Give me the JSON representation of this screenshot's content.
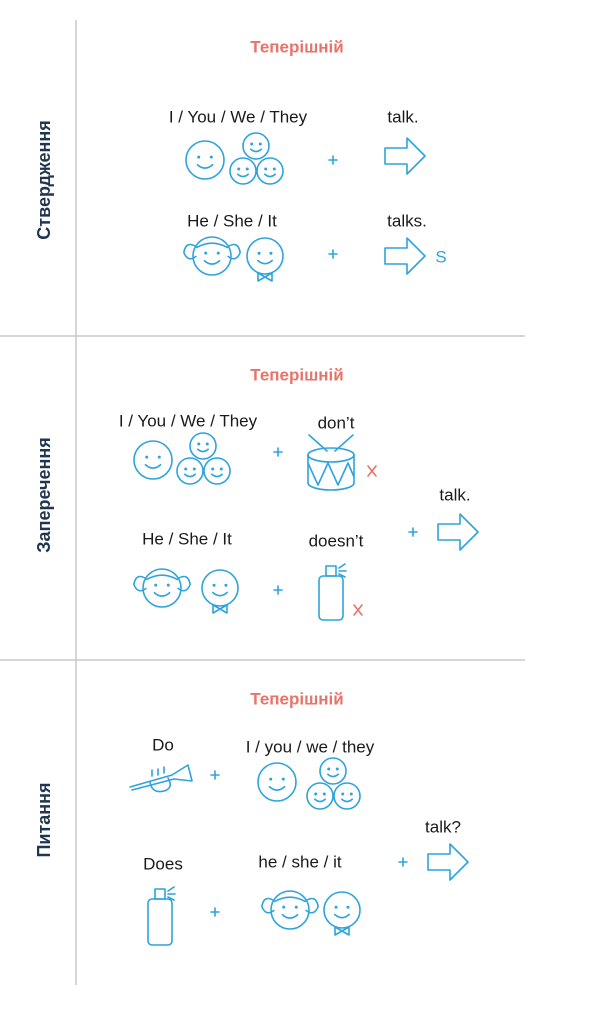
{
  "sections": [
    {
      "label": "Ствердження",
      "title": "Теперішній",
      "rows": [
        {
          "subject": "I / You / We / They",
          "verb": "talk."
        },
        {
          "subject": "He / She / It",
          "verb": "talks.",
          "suffix": "S"
        }
      ]
    },
    {
      "label": "Заперечення",
      "title": "Теперішній",
      "rows": [
        {
          "subject": "I / You / We / They",
          "auxiliary": "don’t"
        },
        {
          "subject": "He / She / It",
          "auxiliary": "doesn’t"
        }
      ],
      "verb": "talk."
    },
    {
      "label": "Питання",
      "title": "Теперішній",
      "rows": [
        {
          "auxiliary": "Do",
          "subject": "I / you / we / they"
        },
        {
          "auxiliary": "Does",
          "subject": "he / she / it"
        }
      ],
      "verb": "talk?"
    }
  ]
}
